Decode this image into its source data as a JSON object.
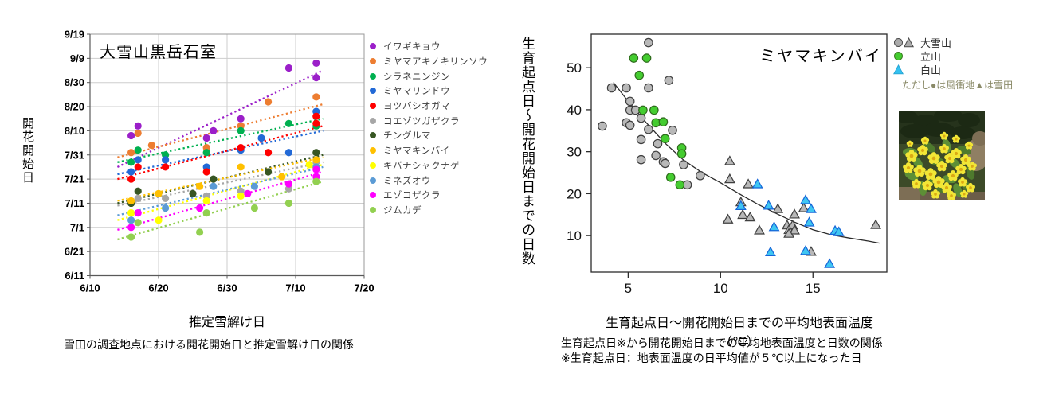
{
  "page_background": "#ffffff",
  "chart_data": [
    {
      "type": "scatter",
      "title": "大雪山黒岳石室",
      "xlabel": "推定雪解け日",
      "ylabel": "開花開始日",
      "caption": "雪田の調査地点における開花開始日と推定雪解け日の関係",
      "x_ticks": [
        "6/10",
        "6/20",
        "6/30",
        "7/10",
        "7/20"
      ],
      "y_ticks": [
        "6/11",
        "6/21",
        "7/1",
        "7/11",
        "7/21",
        "7/31",
        "8/10",
        "8/20",
        "8/30",
        "9/9",
        "9/19"
      ],
      "xlim": [
        "6/10",
        "7/20"
      ],
      "ylim": [
        "6/11",
        "9/19"
      ],
      "grid": true,
      "legend_position": "right",
      "series": [
        {
          "name": "イワギキョウ",
          "color": "#9B1FC9",
          "points": [
            [
              "6/16",
              "8/8"
            ],
            [
              "6/17",
              "8/12"
            ],
            [
              "6/27",
              "8/7"
            ],
            [
              "6/28",
              "8/10"
            ],
            [
              "7/2",
              "8/15"
            ],
            [
              "7/9",
              "9/5"
            ],
            [
              "7/13",
              "9/1"
            ],
            [
              "7/13",
              "9/7"
            ]
          ],
          "trend": [
            [
              "6/14",
              "7/26"
            ],
            [
              "7/14",
              "9/4"
            ]
          ]
        },
        {
          "name": "ミヤマアキノキリンソウ",
          "color": "#ED7D31",
          "points": [
            [
              "6/16",
              "8/1"
            ],
            [
              "6/17",
              "8/9"
            ],
            [
              "6/19",
              "8/4"
            ],
            [
              "6/27",
              "8/3"
            ],
            [
              "7/2",
              "8/12"
            ],
            [
              "7/6",
              "8/22"
            ],
            [
              "7/13",
              "8/24"
            ]
          ],
          "trend": [
            [
              "6/14",
              "7/30"
            ],
            [
              "7/14",
              "8/21"
            ]
          ]
        },
        {
          "name": "シラネニンジン",
          "color": "#00B050",
          "points": [
            [
              "6/16",
              "7/28"
            ],
            [
              "6/17",
              "8/2"
            ],
            [
              "6/21",
              "7/31"
            ],
            [
              "6/27",
              "8/1"
            ],
            [
              "7/2",
              "8/10"
            ],
            [
              "7/9",
              "8/13"
            ],
            [
              "7/13",
              "8/12"
            ]
          ],
          "trend": [
            [
              "6/14",
              "7/28"
            ],
            [
              "7/14",
              "8/15"
            ]
          ]
        },
        {
          "name": "ミヤマリンドウ",
          "color": "#2269D6",
          "points": [
            [
              "6/16",
              "7/24"
            ],
            [
              "6/17",
              "7/29"
            ],
            [
              "6/21",
              "7/29"
            ],
            [
              "6/27",
              "7/26"
            ],
            [
              "7/2",
              "8/2"
            ],
            [
              "7/5",
              "8/7"
            ],
            [
              "7/9",
              "8/1"
            ],
            [
              "7/13",
              "8/18"
            ]
          ],
          "trend": [
            [
              "6/14",
              "7/23"
            ],
            [
              "7/14",
              "8/10"
            ]
          ]
        },
        {
          "name": "ヨツバシオガマ",
          "color": "#FF0000",
          "points": [
            [
              "6/16",
              "7/21"
            ],
            [
              "6/17",
              "7/26"
            ],
            [
              "6/21",
              "7/26"
            ],
            [
              "6/27",
              "7/24"
            ],
            [
              "7/2",
              "8/3"
            ],
            [
              "7/6",
              "8/1"
            ],
            [
              "7/13",
              "8/13"
            ],
            [
              "7/13",
              "8/16"
            ]
          ],
          "trend": [
            [
              "6/14",
              "7/21"
            ],
            [
              "7/14",
              "8/12"
            ]
          ]
        },
        {
          "name": "コエゾツガザクラ",
          "color": "#A6A6A6",
          "points": [
            [
              "6/16",
              "7/11"
            ],
            [
              "6/17",
              "7/13"
            ],
            [
              "6/21",
              "7/13"
            ],
            [
              "6/27",
              "7/14"
            ],
            [
              "7/2",
              "7/16"
            ],
            [
              "7/9",
              "7/17"
            ],
            [
              "7/13",
              "7/28"
            ]
          ],
          "trend": [
            [
              "6/14",
              "7/10"
            ],
            [
              "7/14",
              "7/28"
            ]
          ]
        },
        {
          "name": "チングルマ",
          "color": "#375623",
          "points": [
            [
              "6/16",
              "7/11"
            ],
            [
              "6/17",
              "7/16"
            ],
            [
              "6/25",
              "7/15"
            ],
            [
              "6/28",
              "7/21"
            ],
            [
              "7/6",
              "7/24"
            ],
            [
              "7/13",
              "8/1"
            ]
          ],
          "trend": [
            [
              "6/14",
              "7/11"
            ],
            [
              "7/14",
              "7/31"
            ]
          ]
        },
        {
          "name": "ミヤマキンバイ",
          "color": "#FFC000",
          "points": [
            [
              "6/16",
              "7/12"
            ],
            [
              "6/20",
              "7/15"
            ],
            [
              "6/26",
              "7/18"
            ],
            [
              "7/2",
              "7/26"
            ],
            [
              "7/8",
              "7/22"
            ],
            [
              "7/13",
              "7/29"
            ]
          ],
          "trend": [
            [
              "6/14",
              "7/12"
            ],
            [
              "7/14",
              "7/30"
            ]
          ]
        },
        {
          "name": "キバナシャクナゲ",
          "color": "#FFFF00",
          "points": [
            [
              "6/16",
              "7/7"
            ],
            [
              "6/20",
              "7/4"
            ],
            [
              "6/27",
              "7/12"
            ],
            [
              "7/2",
              "7/14"
            ],
            [
              "7/12",
              "7/27"
            ]
          ],
          "trend": [
            [
              "6/14",
              "7/4"
            ],
            [
              "7/14",
              "7/27"
            ]
          ]
        },
        {
          "name": "ミネズオウ",
          "color": "#5B9BD5",
          "points": [
            [
              "6/16",
              "7/4"
            ],
            [
              "6/21",
              "7/9"
            ],
            [
              "6/28",
              "7/18"
            ],
            [
              "7/4",
              "7/18"
            ],
            [
              "7/13",
              "7/26"
            ]
          ],
          "trend": [
            [
              "6/14",
              "7/6"
            ],
            [
              "7/14",
              "7/26"
            ]
          ]
        },
        {
          "name": "エゾコザクラ",
          "color": "#FF00FF",
          "points": [
            [
              "6/16",
              "7/1"
            ],
            [
              "6/17",
              "7/7"
            ],
            [
              "6/26",
              "7/9"
            ],
            [
              "7/3",
              "7/15"
            ],
            [
              "7/9",
              "7/19"
            ],
            [
              "7/13",
              "7/22"
            ],
            [
              "7/13",
              "7/25"
            ]
          ],
          "trend": [
            [
              "6/14",
              "6/30"
            ],
            [
              "7/14",
              "7/24"
            ]
          ]
        },
        {
          "name": "ジムカデ",
          "color": "#92D050",
          "points": [
            [
              "6/16",
              "6/27"
            ],
            [
              "6/17",
              "7/3"
            ],
            [
              "6/26",
              "6/29"
            ],
            [
              "6/27",
              "7/7"
            ],
            [
              "7/4",
              "7/9"
            ],
            [
              "7/9",
              "7/11"
            ],
            [
              "7/13",
              "7/20"
            ]
          ],
          "trend": [
            [
              "6/14",
              "6/26"
            ],
            [
              "7/14",
              "7/20"
            ]
          ]
        }
      ]
    },
    {
      "type": "scatter",
      "title": "ミヤマキンバイ",
      "xlabel": "生育起点日～開花開始日までの平均地表面温度（℃）",
      "ylabel": "生育起点日～開花開始日までの日数",
      "captions": [
        "生育起点日※から開花開始日までの平均地表面温度と日数の関係",
        "※生育起点日：地表面温度の日平均値が５℃以上になった日"
      ],
      "x_ticks": [
        5,
        10,
        15
      ],
      "y_ticks": [
        10,
        20,
        30,
        40,
        50
      ],
      "xlim": [
        3,
        19
      ],
      "ylim": [
        1.3,
        58
      ],
      "grid": false,
      "legend": {
        "items": [
          {
            "label": "大雪山",
            "markers": [
              "circle",
              "triangle"
            ],
            "fill": "#ABABAB",
            "stroke": "#4a4a4a"
          },
          {
            "label": "立山",
            "markers": [
              "circle"
            ],
            "fill": "#44CC30",
            "stroke": "#3a7a1f"
          },
          {
            "label": "白山",
            "markers": [
              "triangle"
            ],
            "fill": "#33C1F0",
            "stroke": "#2aa7d6"
          }
        ],
        "note": "ただし●は風衝地▲は雪田"
      },
      "groups": [
        {
          "name": "大雪山（風衝地）",
          "marker": "circle",
          "fill": "#B8B8B8",
          "stroke": "#3f3f3f",
          "points": [
            [
              6.1,
              56
            ],
            [
              7.2,
              47
            ],
            [
              4.1,
              45.2
            ],
            [
              4.9,
              45.2
            ],
            [
              6.1,
              45.2
            ],
            [
              5.1,
              42
            ],
            [
              5.1,
              39.9
            ],
            [
              5.4,
              39.9
            ],
            [
              5.7,
              38
            ],
            [
              4.9,
              36.9
            ],
            [
              5.1,
              36.3
            ],
            [
              3.6,
              36.1
            ],
            [
              6.1,
              35.3
            ],
            [
              7.4,
              35.1
            ],
            [
              5.7,
              32.9
            ],
            [
              6.6,
              31.9
            ],
            [
              6.5,
              29.1
            ],
            [
              5.7,
              28.1
            ],
            [
              6.9,
              27.6
            ],
            [
              7.0,
              27.2
            ],
            [
              8.0,
              26.9
            ],
            [
              8.9,
              24.3
            ],
            [
              8.2,
              22.1
            ]
          ]
        },
        {
          "name": "大雪山（雪田）",
          "marker": "triangle",
          "fill": "#B8B8B8",
          "stroke": "#3f3f3f",
          "points": [
            [
              10.5,
              27.7
            ],
            [
              10.5,
              23.4
            ],
            [
              11.5,
              22.2
            ],
            [
              11.1,
              17.9
            ],
            [
              11.2,
              14.9
            ],
            [
              11.6,
              14.3
            ],
            [
              10.4,
              13.8
            ],
            [
              13.1,
              16.3
            ],
            [
              12.1,
              11.2
            ],
            [
              13.6,
              12.4
            ],
            [
              13.9,
              12.4
            ],
            [
              13.7,
              11.3
            ],
            [
              14.0,
              11.2
            ],
            [
              13.7,
              10.4
            ],
            [
              14.0,
              15.0
            ],
            [
              14.5,
              16.5
            ],
            [
              14.9,
              6.1
            ],
            [
              18.4,
              12.5
            ]
          ]
        },
        {
          "name": "立山（風衝地）",
          "marker": "circle",
          "fill": "#44CC30",
          "stroke": "#2f6b1d",
          "points": [
            [
              5.3,
              52.3
            ],
            [
              6.0,
              52.3
            ],
            [
              5.6,
              48.2
            ],
            [
              5.8,
              39.9
            ],
            [
              6.4,
              39.9
            ],
            [
              6.5,
              36.9
            ],
            [
              6.9,
              37.1
            ],
            [
              7.0,
              33.1
            ],
            [
              7.9,
              30.9
            ],
            [
              7.9,
              29.5
            ],
            [
              7.3,
              23.9
            ],
            [
              7.8,
              22.1
            ]
          ]
        },
        {
          "name": "白山（雪田）",
          "marker": "triangle",
          "fill": "#3FC6F2",
          "stroke": "#1565d8",
          "points": [
            [
              12.0,
              22.2
            ],
            [
              11.1,
              17.0
            ],
            [
              12.6,
              17.1
            ],
            [
              12.9,
              12.0
            ],
            [
              14.6,
              18.4
            ],
            [
              14.9,
              16.3
            ],
            [
              14.8,
              13.1
            ],
            [
              16.2,
              11.1
            ],
            [
              16.4,
              10.8
            ],
            [
              12.7,
              6.0
            ],
            [
              14.6,
              6.3
            ],
            [
              15.9,
              3.2
            ]
          ]
        }
      ],
      "curve": [
        [
          4.2,
          46.5
        ],
        [
          5,
          42
        ],
        [
          6,
          36.8
        ],
        [
          7,
          32
        ],
        [
          8,
          28
        ],
        [
          9,
          25
        ],
        [
          10,
          22.6
        ],
        [
          11,
          20
        ],
        [
          12,
          17.5
        ],
        [
          13,
          15.3
        ],
        [
          14,
          13.2
        ],
        [
          15,
          11.4
        ],
        [
          16,
          10.2
        ],
        [
          17,
          9.4
        ],
        [
          18,
          8.7
        ],
        [
          18.6,
          8.2
        ]
      ]
    }
  ]
}
